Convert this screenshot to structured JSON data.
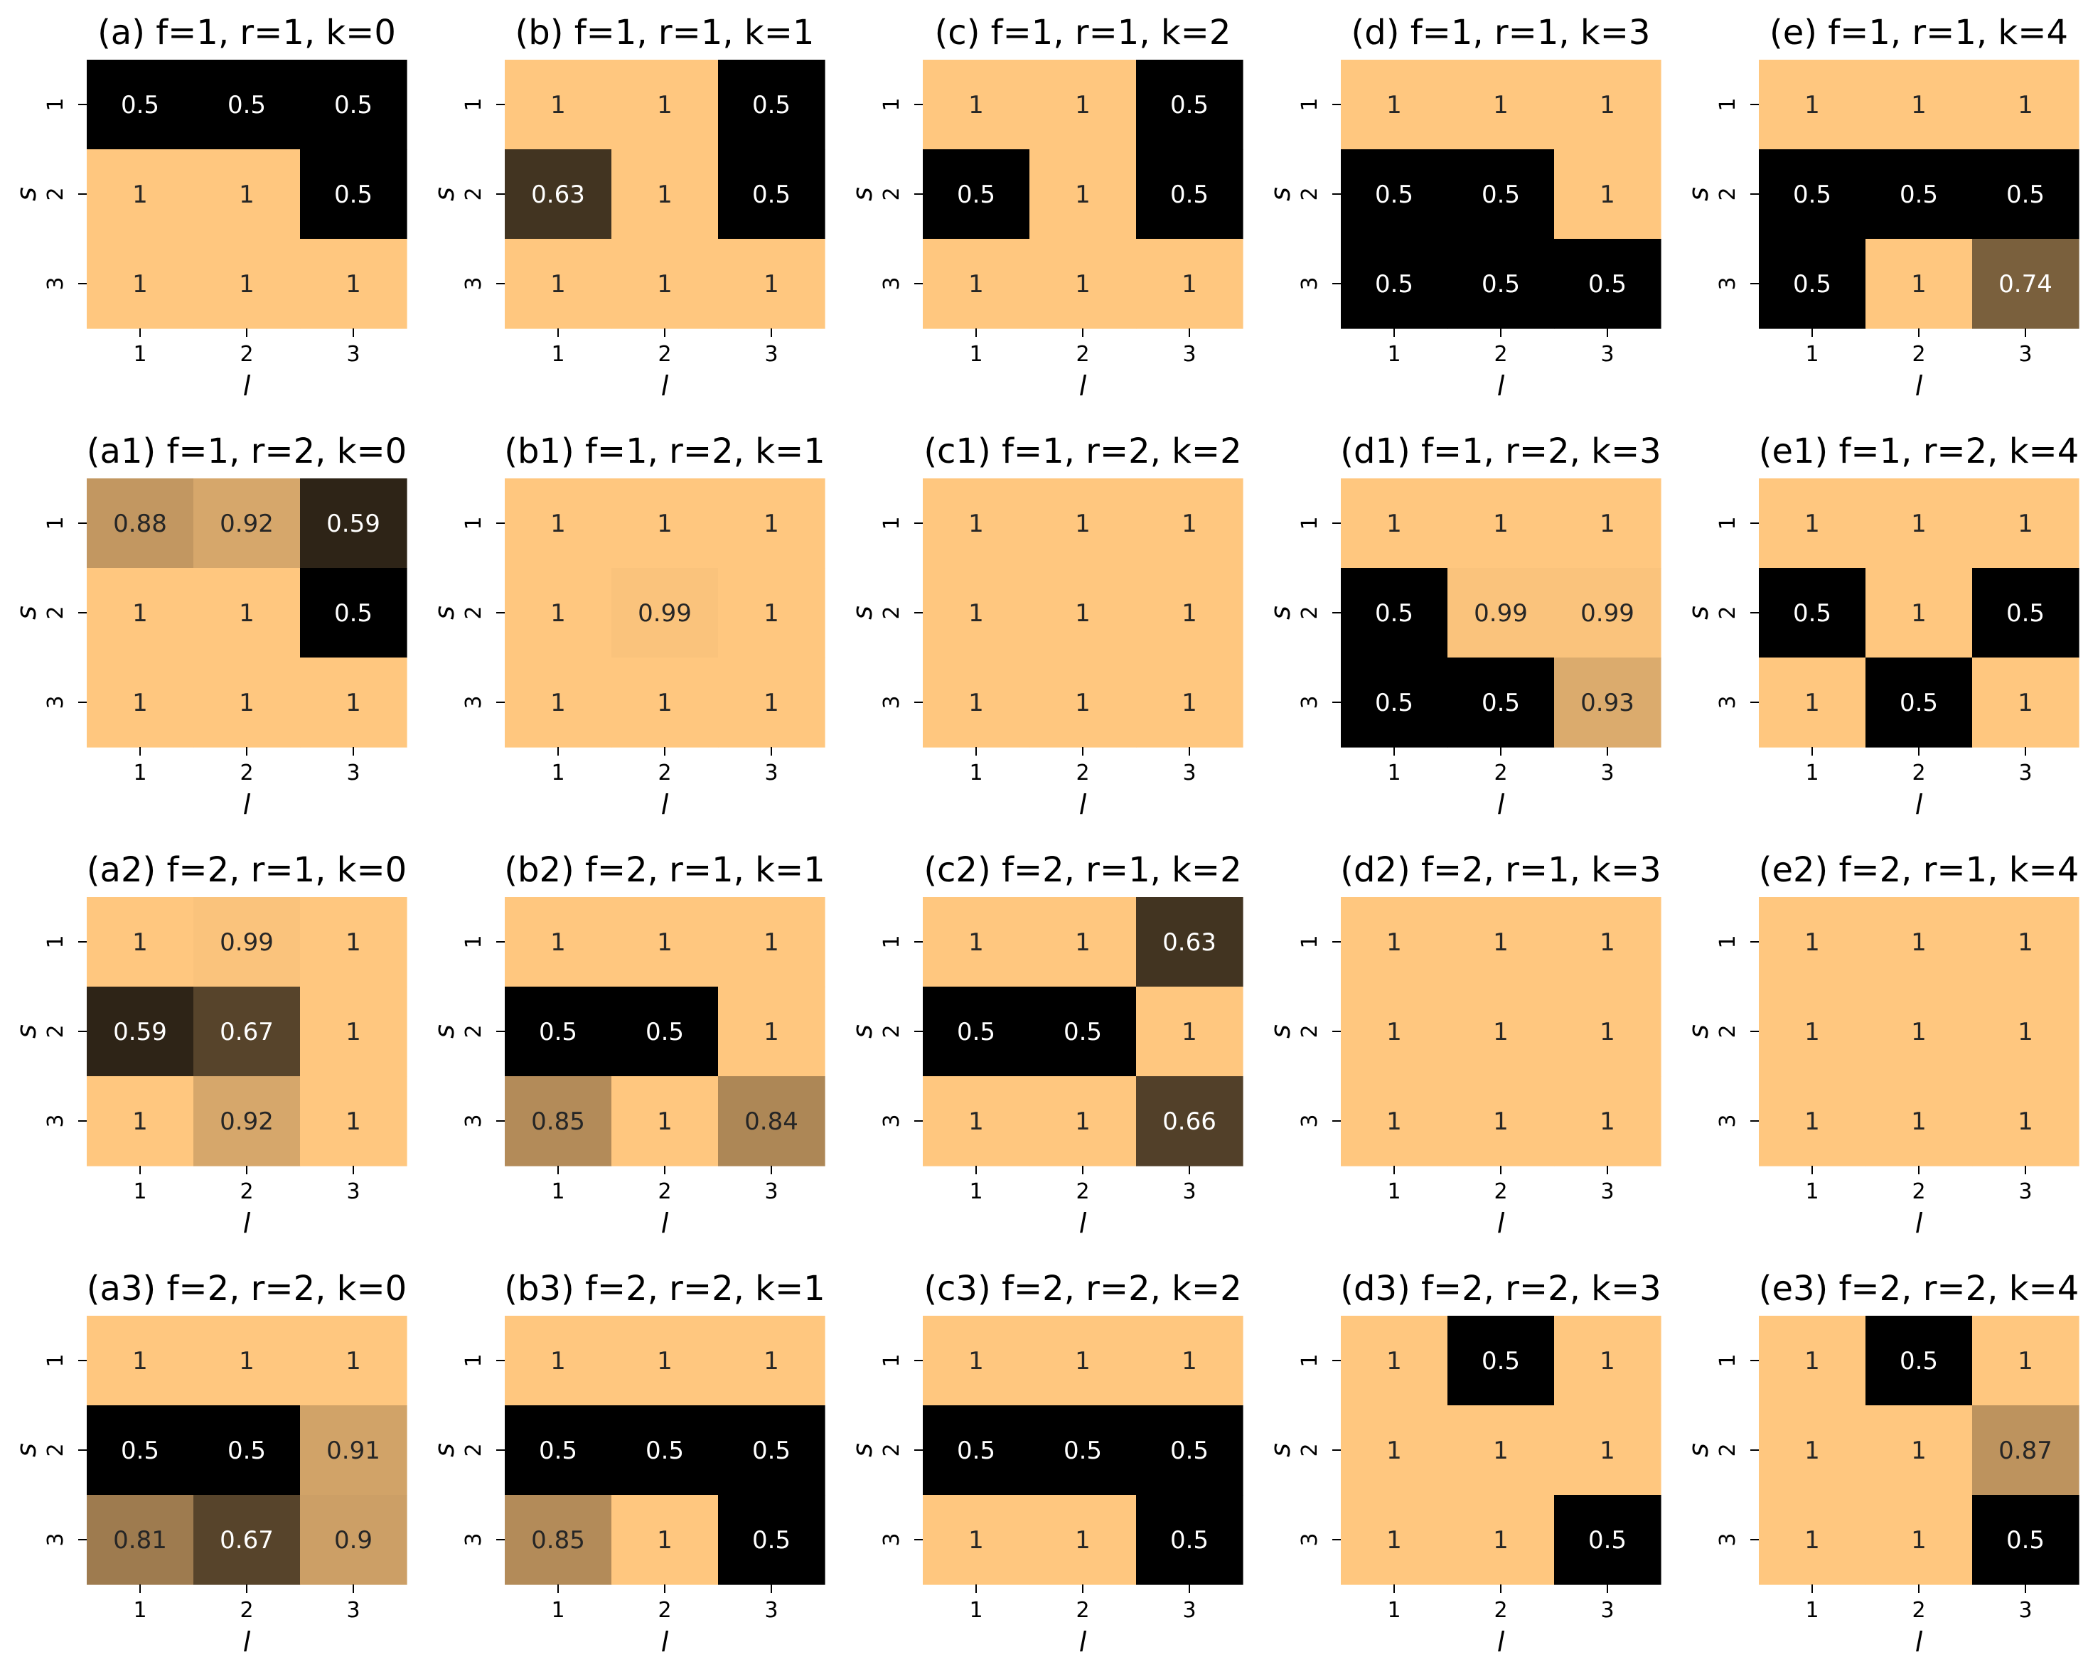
{
  "figure_title": "",
  "chart_data": [
    {
      "type": "heatmap",
      "title": "(a) f=1, r=1, k=0",
      "xlabel": "l",
      "ylabel": "s",
      "x_ticks": [
        "1",
        "2",
        "3"
      ],
      "y_ticks": [
        "1",
        "2",
        "3"
      ],
      "vmin": 0.5,
      "vmax": 1.0,
      "values": [
        [
          0.5,
          0.5,
          0.5
        ],
        [
          1,
          1,
          0.5
        ],
        [
          1,
          1,
          1
        ]
      ],
      "labels": [
        [
          "0.5",
          "0.5",
          "0.5"
        ],
        [
          "1",
          "1",
          "0.5"
        ],
        [
          "1",
          "1",
          "1"
        ]
      ]
    },
    {
      "type": "heatmap",
      "title": "(b) f=1, r=1, k=1",
      "xlabel": "l",
      "ylabel": "s",
      "x_ticks": [
        "1",
        "2",
        "3"
      ],
      "y_ticks": [
        "1",
        "2",
        "3"
      ],
      "vmin": 0.5,
      "vmax": 1.0,
      "values": [
        [
          1,
          1,
          0.5
        ],
        [
          0.63,
          1,
          0.5
        ],
        [
          1,
          1,
          1
        ]
      ],
      "labels": [
        [
          "1",
          "1",
          "0.5"
        ],
        [
          "0.63",
          "1",
          "0.5"
        ],
        [
          "1",
          "1",
          "1"
        ]
      ]
    },
    {
      "type": "heatmap",
      "title": "(c) f=1, r=1, k=2",
      "xlabel": "l",
      "ylabel": "s",
      "x_ticks": [
        "1",
        "2",
        "3"
      ],
      "y_ticks": [
        "1",
        "2",
        "3"
      ],
      "vmin": 0.5,
      "vmax": 1.0,
      "values": [
        [
          1,
          1,
          0.5
        ],
        [
          0.5,
          1,
          0.5
        ],
        [
          1,
          1,
          1
        ]
      ],
      "labels": [
        [
          "1",
          "1",
          "0.5"
        ],
        [
          "0.5",
          "1",
          "0.5"
        ],
        [
          "1",
          "1",
          "1"
        ]
      ]
    },
    {
      "type": "heatmap",
      "title": "(d) f=1, r=1, k=3",
      "xlabel": "l",
      "ylabel": "s",
      "x_ticks": [
        "1",
        "2",
        "3"
      ],
      "y_ticks": [
        "1",
        "2",
        "3"
      ],
      "vmin": 0.5,
      "vmax": 1.0,
      "values": [
        [
          1,
          1,
          1
        ],
        [
          0.5,
          0.5,
          1
        ],
        [
          0.5,
          0.5,
          0.5
        ]
      ],
      "labels": [
        [
          "1",
          "1",
          "1"
        ],
        [
          "0.5",
          "0.5",
          "1"
        ],
        [
          "0.5",
          "0.5",
          "0.5"
        ]
      ]
    },
    {
      "type": "heatmap",
      "title": "(e) f=1, r=1, k=4",
      "xlabel": "l",
      "ylabel": "s",
      "x_ticks": [
        "1",
        "2",
        "3"
      ],
      "y_ticks": [
        "1",
        "2",
        "3"
      ],
      "vmin": 0.5,
      "vmax": 1.0,
      "values": [
        [
          1,
          1,
          1
        ],
        [
          0.5,
          0.5,
          0.5
        ],
        [
          0.5,
          1,
          0.74
        ]
      ],
      "labels": [
        [
          "1",
          "1",
          "1"
        ],
        [
          "0.5",
          "0.5",
          "0.5"
        ],
        [
          "0.5",
          "1",
          "0.74"
        ]
      ]
    },
    {
      "type": "heatmap",
      "title": "(a1) f=1, r=2, k=0",
      "xlabel": "l",
      "ylabel": "s",
      "x_ticks": [
        "1",
        "2",
        "3"
      ],
      "y_ticks": [
        "1",
        "2",
        "3"
      ],
      "vmin": 0.5,
      "vmax": 1.0,
      "values": [
        [
          0.88,
          0.92,
          0.59
        ],
        [
          1,
          1,
          0.5
        ],
        [
          1,
          1,
          1
        ]
      ],
      "labels": [
        [
          "0.88",
          "0.92",
          "0.59"
        ],
        [
          "1",
          "1",
          "0.5"
        ],
        [
          "1",
          "1",
          "1"
        ]
      ]
    },
    {
      "type": "heatmap",
      "title": "(b1) f=1, r=2, k=1",
      "xlabel": "l",
      "ylabel": "s",
      "x_ticks": [
        "1",
        "2",
        "3"
      ],
      "y_ticks": [
        "1",
        "2",
        "3"
      ],
      "vmin": 0.5,
      "vmax": 1.0,
      "values": [
        [
          1,
          1,
          1
        ],
        [
          1,
          0.99,
          1
        ],
        [
          1,
          1,
          1
        ]
      ],
      "labels": [
        [
          "1",
          "1",
          "1"
        ],
        [
          "1",
          "0.99",
          "1"
        ],
        [
          "1",
          "1",
          "1"
        ]
      ]
    },
    {
      "type": "heatmap",
      "title": "(c1) f=1, r=2, k=2",
      "xlabel": "l",
      "ylabel": "s",
      "x_ticks": [
        "1",
        "2",
        "3"
      ],
      "y_ticks": [
        "1",
        "2",
        "3"
      ],
      "vmin": 0.5,
      "vmax": 1.0,
      "values": [
        [
          1,
          1,
          1
        ],
        [
          1,
          1,
          1
        ],
        [
          1,
          1,
          1
        ]
      ],
      "labels": [
        [
          "1",
          "1",
          "1"
        ],
        [
          "1",
          "1",
          "1"
        ],
        [
          "1",
          "1",
          "1"
        ]
      ]
    },
    {
      "type": "heatmap",
      "title": "(d1) f=1, r=2, k=3",
      "xlabel": "l",
      "ylabel": "s",
      "x_ticks": [
        "1",
        "2",
        "3"
      ],
      "y_ticks": [
        "1",
        "2",
        "3"
      ],
      "vmin": 0.5,
      "vmax": 1.0,
      "values": [
        [
          1,
          1,
          1
        ],
        [
          0.5,
          0.99,
          0.99
        ],
        [
          0.5,
          0.5,
          0.93
        ]
      ],
      "labels": [
        [
          "1",
          "1",
          "1"
        ],
        [
          "0.5",
          "0.99",
          "0.99"
        ],
        [
          "0.5",
          "0.5",
          "0.93"
        ]
      ]
    },
    {
      "type": "heatmap",
      "title": "(e1) f=1, r=2, k=4",
      "xlabel": "l",
      "ylabel": "s",
      "x_ticks": [
        "1",
        "2",
        "3"
      ],
      "y_ticks": [
        "1",
        "2",
        "3"
      ],
      "vmin": 0.5,
      "vmax": 1.0,
      "values": [
        [
          1,
          1,
          1
        ],
        [
          0.5,
          1,
          0.5
        ],
        [
          1,
          0.5,
          1
        ]
      ],
      "labels": [
        [
          "1",
          "1",
          "1"
        ],
        [
          "0.5",
          "1",
          "0.5"
        ],
        [
          "1",
          "0.5",
          "1"
        ]
      ]
    },
    {
      "type": "heatmap",
      "title": "(a2) f=2, r=1, k=0",
      "xlabel": "l",
      "ylabel": "s",
      "x_ticks": [
        "1",
        "2",
        "3"
      ],
      "y_ticks": [
        "1",
        "2",
        "3"
      ],
      "vmin": 0.5,
      "vmax": 1.0,
      "values": [
        [
          1,
          0.99,
          1
        ],
        [
          0.59,
          0.67,
          1
        ],
        [
          1,
          0.92,
          1
        ]
      ],
      "labels": [
        [
          "1",
          "0.99",
          "1"
        ],
        [
          "0.59",
          "0.67",
          "1"
        ],
        [
          "1",
          "0.92",
          "1"
        ]
      ]
    },
    {
      "type": "heatmap",
      "title": "(b2) f=2, r=1, k=1",
      "xlabel": "l",
      "ylabel": "s",
      "x_ticks": [
        "1",
        "2",
        "3"
      ],
      "y_ticks": [
        "1",
        "2",
        "3"
      ],
      "vmin": 0.5,
      "vmax": 1.0,
      "values": [
        [
          1,
          1,
          1
        ],
        [
          0.5,
          0.5,
          1
        ],
        [
          0.85,
          1,
          0.84
        ]
      ],
      "labels": [
        [
          "1",
          "1",
          "1"
        ],
        [
          "0.5",
          "0.5",
          "1"
        ],
        [
          "0.85",
          "1",
          "0.84"
        ]
      ]
    },
    {
      "type": "heatmap",
      "title": "(c2) f=2, r=1, k=2",
      "xlabel": "l",
      "ylabel": "s",
      "x_ticks": [
        "1",
        "2",
        "3"
      ],
      "y_ticks": [
        "1",
        "2",
        "3"
      ],
      "vmin": 0.5,
      "vmax": 1.0,
      "values": [
        [
          1,
          1,
          0.63
        ],
        [
          0.5,
          0.5,
          1
        ],
        [
          1,
          1,
          0.66
        ]
      ],
      "labels": [
        [
          "1",
          "1",
          "0.63"
        ],
        [
          "0.5",
          "0.5",
          "1"
        ],
        [
          "1",
          "1",
          "0.66"
        ]
      ]
    },
    {
      "type": "heatmap",
      "title": "(d2) f=2, r=1, k=3",
      "xlabel": "l",
      "ylabel": "s",
      "x_ticks": [
        "1",
        "2",
        "3"
      ],
      "y_ticks": [
        "1",
        "2",
        "3"
      ],
      "vmin": 0.5,
      "vmax": 1.0,
      "values": [
        [
          1,
          1,
          1
        ],
        [
          1,
          1,
          1
        ],
        [
          1,
          1,
          1
        ]
      ],
      "labels": [
        [
          "1",
          "1",
          "1"
        ],
        [
          "1",
          "1",
          "1"
        ],
        [
          "1",
          "1",
          "1"
        ]
      ]
    },
    {
      "type": "heatmap",
      "title": "(e2) f=2, r=1, k=4",
      "xlabel": "l",
      "ylabel": "s",
      "x_ticks": [
        "1",
        "2",
        "3"
      ],
      "y_ticks": [
        "1",
        "2",
        "3"
      ],
      "vmin": 0.5,
      "vmax": 1.0,
      "values": [
        [
          1,
          1,
          1
        ],
        [
          1,
          1,
          1
        ],
        [
          1,
          1,
          1
        ]
      ],
      "labels": [
        [
          "1",
          "1",
          "1"
        ],
        [
          "1",
          "1",
          "1"
        ],
        [
          "1",
          "1",
          "1"
        ]
      ]
    },
    {
      "type": "heatmap",
      "title": "(a3) f=2, r=2, k=0",
      "xlabel": "l",
      "ylabel": "s",
      "x_ticks": [
        "1",
        "2",
        "3"
      ],
      "y_ticks": [
        "1",
        "2",
        "3"
      ],
      "vmin": 0.5,
      "vmax": 1.0,
      "values": [
        [
          1,
          1,
          1
        ],
        [
          0.5,
          0.5,
          0.91
        ],
        [
          0.81,
          0.67,
          0.9
        ]
      ],
      "labels": [
        [
          "1",
          "1",
          "1"
        ],
        [
          "0.5",
          "0.5",
          "0.91"
        ],
        [
          "0.81",
          "0.67",
          "0.9"
        ]
      ]
    },
    {
      "type": "heatmap",
      "title": "(b3) f=2, r=2, k=1",
      "xlabel": "l",
      "ylabel": "s",
      "x_ticks": [
        "1",
        "2",
        "3"
      ],
      "y_ticks": [
        "1",
        "2",
        "3"
      ],
      "vmin": 0.5,
      "vmax": 1.0,
      "values": [
        [
          1,
          1,
          1
        ],
        [
          0.5,
          0.5,
          0.5
        ],
        [
          0.85,
          1,
          0.5
        ]
      ],
      "labels": [
        [
          "1",
          "1",
          "1"
        ],
        [
          "0.5",
          "0.5",
          "0.5"
        ],
        [
          "0.85",
          "1",
          "0.5"
        ]
      ]
    },
    {
      "type": "heatmap",
      "title": "(c3) f=2, r=2, k=2",
      "xlabel": "l",
      "ylabel": "s",
      "x_ticks": [
        "1",
        "2",
        "3"
      ],
      "y_ticks": [
        "1",
        "2",
        "3"
      ],
      "vmin": 0.5,
      "vmax": 1.0,
      "values": [
        [
          1,
          1,
          1
        ],
        [
          0.5,
          0.5,
          0.5
        ],
        [
          1,
          1,
          0.5
        ]
      ],
      "labels": [
        [
          "1",
          "1",
          "1"
        ],
        [
          "0.5",
          "0.5",
          "0.5"
        ],
        [
          "1",
          "1",
          "0.5"
        ]
      ]
    },
    {
      "type": "heatmap",
      "title": "(d3) f=2, r=2, k=3",
      "xlabel": "l",
      "ylabel": "s",
      "x_ticks": [
        "1",
        "2",
        "3"
      ],
      "y_ticks": [
        "1",
        "2",
        "3"
      ],
      "vmin": 0.5,
      "vmax": 1.0,
      "values": [
        [
          1,
          0.5,
          1
        ],
        [
          1,
          1,
          1
        ],
        [
          1,
          1,
          0.5
        ]
      ],
      "labels": [
        [
          "1",
          "0.5",
          "1"
        ],
        [
          "1",
          "1",
          "1"
        ],
        [
          "1",
          "1",
          "0.5"
        ]
      ]
    },
    {
      "type": "heatmap",
      "title": "(e3) f=2, r=2, k=4",
      "xlabel": "l",
      "ylabel": "s",
      "x_ticks": [
        "1",
        "2",
        "3"
      ],
      "y_ticks": [
        "1",
        "2",
        "3"
      ],
      "vmin": 0.5,
      "vmax": 1.0,
      "values": [
        [
          1,
          0.5,
          1
        ],
        [
          1,
          1,
          0.87
        ],
        [
          1,
          1,
          0.5
        ]
      ],
      "labels": [
        [
          "1",
          "0.5",
          "1"
        ],
        [
          "1",
          "1",
          "0.87"
        ],
        [
          "1",
          "1",
          "0.5"
        ]
      ]
    }
  ],
  "colormap": {
    "name": "copper",
    "stops": [
      "#000000",
      "#ffc77f"
    ]
  }
}
